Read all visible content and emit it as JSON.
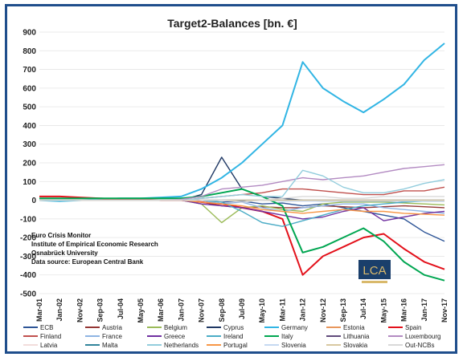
{
  "chart_data": {
    "type": "line",
    "title": "Target2-Balances [bn. €]",
    "xlabel": "",
    "ylabel": "",
    "ylim": [
      -500,
      900
    ],
    "yticks": [
      900,
      800,
      700,
      600,
      500,
      400,
      300,
      200,
      100,
      0,
      -100,
      -200,
      -300,
      -400,
      -500
    ],
    "categories": [
      "Mar-01",
      "Jan-02",
      "Nov-02",
      "Sep-03",
      "Jul-04",
      "May-05",
      "Mar-06",
      "Jan-07",
      "Nov-07",
      "Sep-08",
      "Jul-09",
      "May-10",
      "Mar-11",
      "Jan-12",
      "Nov-12",
      "Sep-13",
      "Jul-14",
      "May-15",
      "Mar-16",
      "Jan-17",
      "Nov-17"
    ],
    "grid": true,
    "legend_position": "bottom",
    "annotation_lines": [
      "Euro Crisis Monitor",
      "Institute of Empirical Economic Research",
      "Osnabrück University",
      "Data source: European Central Bank"
    ],
    "logo_text": "LCA",
    "series": [
      {
        "name": "ECB",
        "color": "#2e5597",
        "values": [
          0,
          0,
          0,
          0,
          0,
          0,
          0,
          0,
          0,
          -10,
          -5,
          -20,
          -15,
          -30,
          -20,
          -40,
          -60,
          -80,
          -100,
          -170,
          -220
        ]
      },
      {
        "name": "Austria",
        "color": "#943634",
        "values": [
          0,
          0,
          0,
          0,
          0,
          0,
          0,
          0,
          -10,
          -30,
          -40,
          -35,
          -40,
          -40,
          -30,
          -35,
          -40,
          -35,
          -30,
          -35,
          -40
        ]
      },
      {
        "name": "Belgium",
        "color": "#9bbb59",
        "values": [
          0,
          0,
          0,
          0,
          0,
          0,
          0,
          0,
          -20,
          -120,
          -40,
          -30,
          -50,
          -60,
          -20,
          -10,
          -10,
          -10,
          -15,
          -20,
          -25
        ]
      },
      {
        "name": "Cyprus",
        "color": "#1f3864",
        "values": [
          0,
          0,
          0,
          0,
          0,
          0,
          0,
          0,
          30,
          230,
          60,
          20,
          10,
          0,
          -5,
          -5,
          -5,
          -5,
          -5,
          -5,
          -5
        ]
      },
      {
        "name": "Germany",
        "color": "#31b5e4",
        "values": [
          0,
          -5,
          0,
          5,
          10,
          10,
          15,
          20,
          60,
          120,
          200,
          300,
          400,
          740,
          600,
          530,
          470,
          540,
          620,
          750,
          840
        ]
      },
      {
        "name": "Estonia",
        "color": "#e8975c",
        "values": [
          0,
          0,
          0,
          0,
          0,
          0,
          0,
          0,
          0,
          0,
          0,
          0,
          0,
          0,
          0,
          0,
          0,
          0,
          0,
          0,
          0
        ]
      },
      {
        "name": "Spain",
        "color": "#e3111b",
        "values": [
          20,
          20,
          15,
          10,
          5,
          5,
          0,
          0,
          -10,
          -20,
          -40,
          -60,
          -100,
          -400,
          -300,
          -250,
          -200,
          -180,
          -260,
          -330,
          -370
        ]
      },
      {
        "name": "Finland",
        "color": "#c0504d",
        "values": [
          0,
          0,
          0,
          0,
          0,
          0,
          0,
          0,
          10,
          20,
          30,
          40,
          60,
          60,
          50,
          40,
          30,
          30,
          50,
          50,
          70
        ]
      },
      {
        "name": "France",
        "color": "#8eb4e3",
        "values": [
          0,
          0,
          0,
          0,
          0,
          0,
          0,
          0,
          0,
          -20,
          -10,
          -40,
          -60,
          -40,
          -30,
          -20,
          -20,
          -40,
          -50,
          -60,
          -70
        ]
      },
      {
        "name": "Greece",
        "color": "#7030a0",
        "values": [
          0,
          0,
          0,
          0,
          0,
          0,
          0,
          0,
          -20,
          -30,
          -40,
          -60,
          -80,
          -100,
          -90,
          -60,
          -40,
          -110,
          -90,
          -70,
          -60
        ]
      },
      {
        "name": "Ireland",
        "color": "#4bacc6",
        "values": [
          0,
          0,
          0,
          0,
          0,
          0,
          0,
          0,
          0,
          -10,
          -60,
          -120,
          -140,
          -110,
          -80,
          -50,
          -30,
          -20,
          -10,
          -5,
          0
        ]
      },
      {
        "name": "Italy",
        "color": "#00a651",
        "values": [
          10,
          10,
          10,
          10,
          10,
          10,
          10,
          10,
          20,
          40,
          60,
          20,
          -30,
          -280,
          -250,
          -200,
          -150,
          -220,
          -330,
          -400,
          -430
        ]
      },
      {
        "name": "Lithuania",
        "color": "#604a7b",
        "values": [
          0,
          0,
          0,
          0,
          0,
          0,
          0,
          0,
          0,
          0,
          0,
          0,
          0,
          0,
          0,
          0,
          0,
          0,
          0,
          0,
          0
        ]
      },
      {
        "name": "Luxembourg",
        "color": "#b38bc2",
        "values": [
          0,
          0,
          0,
          0,
          0,
          0,
          0,
          5,
          20,
          60,
          70,
          80,
          100,
          120,
          110,
          120,
          130,
          150,
          170,
          180,
          190
        ]
      },
      {
        "name": "Latvia",
        "color": "#f2dcdb",
        "values": [
          0,
          0,
          0,
          0,
          0,
          0,
          0,
          0,
          0,
          0,
          0,
          0,
          0,
          0,
          0,
          0,
          0,
          0,
          0,
          0,
          0
        ]
      },
      {
        "name": "Malta",
        "color": "#31849b",
        "values": [
          0,
          0,
          0,
          0,
          0,
          0,
          0,
          0,
          0,
          0,
          0,
          0,
          0,
          0,
          0,
          0,
          0,
          0,
          0,
          0,
          0
        ]
      },
      {
        "name": "Netherlands",
        "color": "#93cddd",
        "values": [
          0,
          0,
          0,
          0,
          0,
          0,
          0,
          0,
          10,
          20,
          30,
          20,
          20,
          160,
          130,
          70,
          40,
          40,
          60,
          90,
          110
        ]
      },
      {
        "name": "Portugal",
        "color": "#f79646",
        "values": [
          0,
          0,
          0,
          0,
          0,
          0,
          0,
          0,
          -10,
          -20,
          -30,
          -50,
          -60,
          -70,
          -60,
          -50,
          -60,
          -60,
          -70,
          -75,
          -80
        ]
      },
      {
        "name": "Slovenia",
        "color": "#c5d9f1",
        "values": [
          0,
          0,
          0,
          0,
          0,
          0,
          0,
          0,
          0,
          0,
          0,
          0,
          -5,
          -5,
          -5,
          -5,
          -5,
          -5,
          -5,
          -5,
          -5
        ]
      },
      {
        "name": "Slovakia",
        "color": "#d8c8a0",
        "values": [
          0,
          0,
          0,
          0,
          0,
          0,
          0,
          0,
          0,
          0,
          0,
          0,
          0,
          0,
          0,
          0,
          0,
          0,
          0,
          0,
          0
        ]
      },
      {
        "name": "Out-NCBs",
        "color": "#d9d9d9",
        "values": [
          0,
          0,
          0,
          0,
          0,
          0,
          0,
          0,
          0,
          0,
          -10,
          0,
          10,
          20,
          20,
          10,
          10,
          20,
          20,
          20,
          20
        ]
      }
    ]
  }
}
